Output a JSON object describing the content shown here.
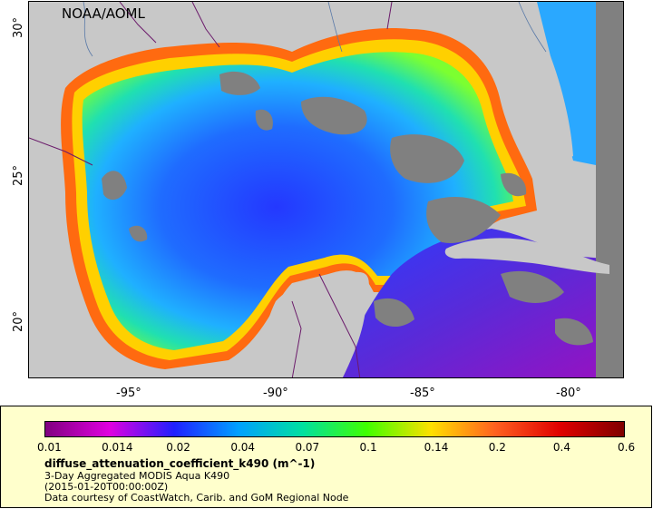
{
  "map": {
    "credit": "NOAA/AOML",
    "lat_ticks": [
      "30°",
      "25°",
      "20°"
    ],
    "lon_ticks": [
      "-95°",
      "-90°",
      "-85°",
      "-80°"
    ],
    "colors": {
      "land": "#c8c8c8",
      "nodata": "#808080",
      "border": "#6b1b6b"
    }
  },
  "legend": {
    "colorbar_ticks": [
      "0.01",
      "0.014",
      "0.02",
      "0.04",
      "0.07",
      "0.1",
      "0.14",
      "0.2",
      "0.4",
      "0.6"
    ],
    "title": "diffuse_attenuation_coefficient_k490 (m^-1)",
    "line1": "3-Day Aggregated MODIS Aqua K490",
    "line2": "(2015-01-20T00:00:00Z)",
    "line3": "Data courtesy of CoastWatch, Carib. and GoM Regional Node",
    "colorbar_colors": [
      "#800080",
      "#e000e0",
      "#2020ff",
      "#00a0ff",
      "#00e0a0",
      "#40ff00",
      "#ffe000",
      "#ff6020",
      "#e00000",
      "#800000"
    ]
  }
}
